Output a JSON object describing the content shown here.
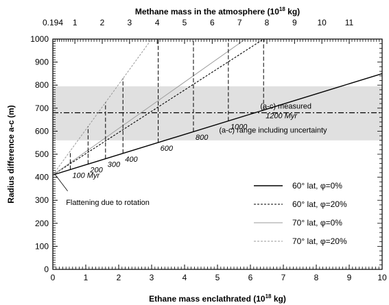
{
  "chart_data": {
    "type": "line",
    "xlabel": "Ethane mass enclathrated",
    "xlabel_unit": "(10",
    "xlabel_exp": "18",
    "xlabel_tail": " kg)",
    "x2label": "Methane mass in the atmosphere",
    "x2label_unit": "(10",
    "x2label_exp": "18",
    "x2label_tail": " kg)",
    "ylabel": "Radius difference a-c (m)",
    "xlim": [
      0,
      10
    ],
    "ylim": [
      0,
      1000
    ],
    "x_ticks": [
      "0",
      "1",
      "2",
      "3",
      "4",
      "5",
      "6",
      "7",
      "8",
      "9",
      "10"
    ],
    "y_ticks": [
      "0",
      "100",
      "200",
      "300",
      "400",
      "500",
      "600",
      "700",
      "800",
      "900",
      "1000"
    ],
    "top_ticks": [
      {
        "label": "0.194",
        "x": 0
      },
      {
        "label": "1",
        "x": 0.67
      },
      {
        "label": "2",
        "x": 1.5
      },
      {
        "label": "3",
        "x": 2.33
      },
      {
        "label": "4",
        "x": 3.17
      },
      {
        "label": "5",
        "x": 4.0
      },
      {
        "label": "6",
        "x": 4.84
      },
      {
        "label": "7",
        "x": 5.67
      },
      {
        "label": "8",
        "x": 6.5
      },
      {
        "label": "9",
        "x": 7.34
      },
      {
        "label": "10",
        "x": 8.17
      },
      {
        "label": "11",
        "x": 9.0
      }
    ],
    "band": {
      "y0": 560,
      "y1": 795,
      "label": "(a-c) range including uncertainty"
    },
    "measured": {
      "y": 680,
      "label": "(a-c) measured"
    },
    "series": [
      {
        "name": "60° lat, φ=0%",
        "style": "solid-thick",
        "color": "#000000",
        "points": [
          [
            0,
            410
          ],
          [
            10,
            850
          ]
        ]
      },
      {
        "name": "60° lat, φ=20%",
        "style": "dashed",
        "color": "#000000",
        "points": [
          [
            0,
            410
          ],
          [
            6.4,
            1000
          ]
        ]
      },
      {
        "name": "70° lat, φ=0%",
        "style": "solid-thin",
        "color": "#999999",
        "points": [
          [
            0,
            410
          ],
          [
            5.85,
            1000
          ]
        ]
      },
      {
        "name": "70° lat, φ=20%",
        "style": "dashed-thin",
        "color": "#999999",
        "points": [
          [
            0,
            410
          ],
          [
            3.0,
            1000
          ]
        ]
      }
    ],
    "time_markers": [
      {
        "label": "100 Myr",
        "x": 0.53
      },
      {
        "label": "200",
        "x": 1.07
      },
      {
        "label": "300",
        "x": 1.6
      },
      {
        "label": "400",
        "x": 2.13
      },
      {
        "label": "600",
        "x": 3.2
      },
      {
        "label": "800",
        "x": 4.27
      },
      {
        "label": "1000",
        "x": 5.33
      },
      {
        "label": "1200 Myr",
        "x": 6.4
      }
    ],
    "flattening_label": "Flattening due to rotation",
    "grid": false,
    "legend_position": "lower-right"
  }
}
